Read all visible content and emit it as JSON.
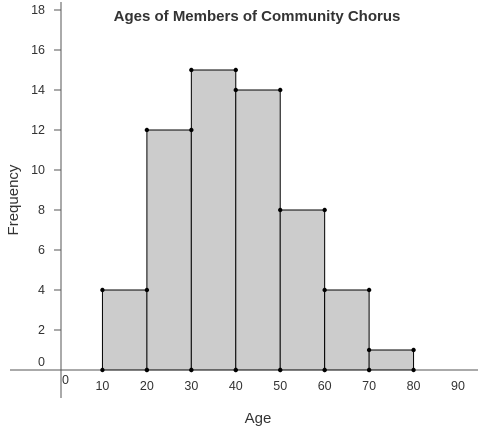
{
  "chart_data": {
    "type": "bar",
    "title": "Ages of Members of Community Chorus",
    "xlabel": "Age",
    "ylabel": "Frequency",
    "bins": [
      {
        "start": 10,
        "end": 20,
        "value": 4
      },
      {
        "start": 20,
        "end": 30,
        "value": 12
      },
      {
        "start": 30,
        "end": 40,
        "value": 15
      },
      {
        "start": 40,
        "end": 50,
        "value": 14
      },
      {
        "start": 50,
        "end": 60,
        "value": 8
      },
      {
        "start": 60,
        "end": 70,
        "value": 4
      },
      {
        "start": 70,
        "end": 80,
        "value": 1
      }
    ],
    "x_ticks": [
      "0",
      "10",
      "20",
      "30",
      "40",
      "50",
      "60",
      "70",
      "80",
      "90"
    ],
    "y_ticks": [
      "0",
      "2",
      "4",
      "6",
      "8",
      "10",
      "12",
      "14",
      "16",
      "18"
    ],
    "xlim": [
      0,
      90
    ],
    "ylim": [
      0,
      18
    ],
    "grid": false,
    "colors": {
      "bar_fill": "#cccccc",
      "bar_stroke": "#000000",
      "axis": "#555555",
      "text": "#333333"
    }
  }
}
